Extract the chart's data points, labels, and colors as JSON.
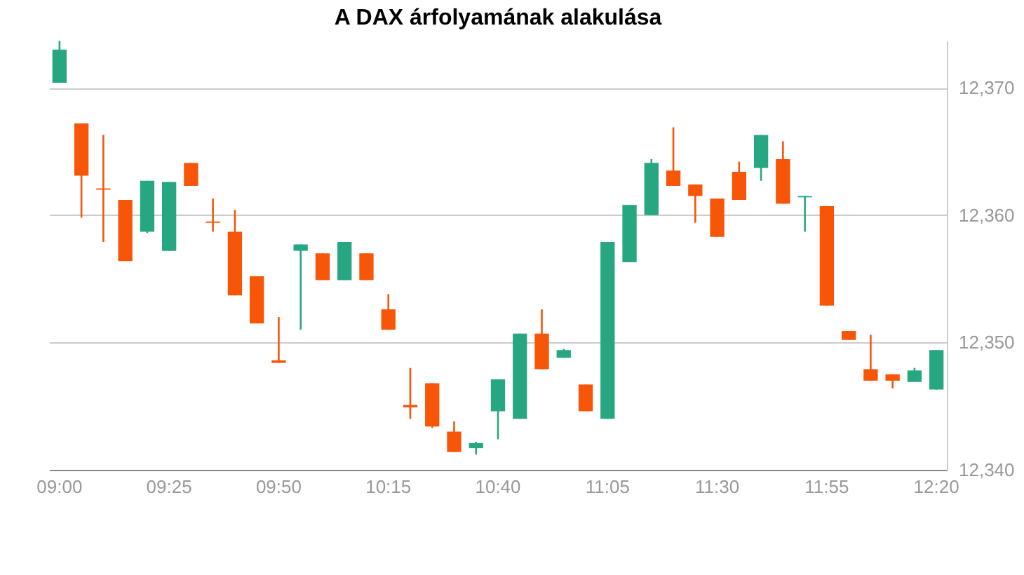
{
  "chart_data": {
    "type": "candlestick",
    "title": "A DAX árfolyamának alakulása",
    "categories": [
      "09:00",
      null,
      null,
      null,
      null,
      "09:25",
      null,
      null,
      null,
      null,
      "09:50",
      null,
      null,
      null,
      null,
      "10:15",
      null,
      null,
      null,
      null,
      "10:40",
      null,
      null,
      null,
      null,
      "11:05",
      null,
      null,
      null,
      null,
      "11:30",
      null,
      null,
      null,
      null,
      "11:55",
      null,
      null,
      null,
      null,
      "12:20"
    ],
    "ohlc": [
      [
        12370.4,
        12373.7,
        12370.4,
        12373.0
      ],
      [
        12367.2,
        12367.2,
        12359.8,
        12363.1
      ],
      [
        12362.1,
        12366.3,
        12357.9,
        12362.0
      ],
      [
        12361.2,
        12361.2,
        12356.4,
        12356.4
      ],
      [
        12358.7,
        12362.7,
        12358.6,
        12362.7
      ],
      [
        12357.2,
        12362.6,
        12357.2,
        12362.6
      ],
      [
        12364.1,
        12364.1,
        12362.3,
        12362.3
      ],
      [
        12359.5,
        12361.3,
        12358.7,
        12359.4
      ],
      [
        12358.7,
        12360.4,
        12353.7,
        12353.7
      ],
      [
        12355.2,
        12355.2,
        12351.5,
        12351.5
      ],
      [
        12348.6,
        12352.0,
        12348.4,
        12348.4
      ],
      [
        12357.2,
        12357.7,
        12351.0,
        12357.7
      ],
      [
        12357.0,
        12357.0,
        12354.9,
        12354.9
      ],
      [
        12354.9,
        12357.9,
        12354.9,
        12357.9
      ],
      [
        12357.0,
        12357.0,
        12354.9,
        12354.9
      ],
      [
        12352.6,
        12353.8,
        12351.0,
        12351.0
      ],
      [
        12345.1,
        12348.0,
        12344.0,
        12344.9
      ],
      [
        12346.8,
        12346.8,
        12343.3,
        12343.4
      ],
      [
        12343.0,
        12343.8,
        12341.4,
        12341.4
      ],
      [
        12341.7,
        12342.2,
        12341.2,
        12342.1
      ],
      [
        12344.6,
        12347.1,
        12342.4,
        12347.1
      ],
      [
        12344.0,
        12350.7,
        12344.0,
        12350.7
      ],
      [
        12350.7,
        12352.6,
        12347.9,
        12347.9
      ],
      [
        12348.8,
        12349.5,
        12348.8,
        12349.4
      ],
      [
        12346.7,
        12346.7,
        12344.6,
        12344.6
      ],
      [
        12344.0,
        12357.9,
        12344.0,
        12357.9
      ],
      [
        12356.3,
        12360.8,
        12356.3,
        12360.8
      ],
      [
        12360.0,
        12364.4,
        12360.0,
        12364.1
      ],
      [
        12363.5,
        12366.9,
        12362.3,
        12362.3
      ],
      [
        12362.4,
        12362.4,
        12359.4,
        12361.5
      ],
      [
        12361.3,
        12361.3,
        12358.3,
        12358.3
      ],
      [
        12363.4,
        12364.2,
        12361.2,
        12361.2
      ],
      [
        12363.7,
        12366.3,
        12362.7,
        12366.3
      ],
      [
        12364.4,
        12365.8,
        12360.9,
        12360.9
      ],
      [
        12361.4,
        12361.5,
        12358.7,
        12361.5
      ],
      [
        12360.7,
        12360.7,
        12352.9,
        12352.9
      ],
      [
        12350.9,
        12350.9,
        12350.2,
        12350.2
      ],
      [
        12347.9,
        12350.6,
        12347.0,
        12347.0
      ],
      [
        12347.5,
        12347.5,
        12346.4,
        12347.0
      ],
      [
        12346.9,
        12348.0,
        12346.9,
        12347.8
      ],
      [
        12346.3,
        12349.4,
        12346.3,
        12349.4
      ]
    ],
    "colors": [
      "#26a782",
      "#f75508",
      "#f75508",
      "#f75508",
      "#26a782",
      "#26a782",
      "#f75508",
      "#f75508",
      "#f75508",
      "#f75508",
      "#f75508",
      "#26a782",
      "#f75508",
      "#26a782",
      "#f75508",
      "#f75508",
      "#f75508",
      "#f75508",
      "#f75508",
      "#26a782",
      "#26a782",
      "#26a782",
      "#f75508",
      "#26a782",
      "#f75508",
      "#26a782",
      "#26a782",
      "#26a782",
      "#f75508",
      "#f75508",
      "#f75508",
      "#f75508",
      "#26a782",
      "#f75508",
      "#26a782",
      "#f75508",
      "#f75508",
      "#f75508",
      "#f75508",
      "#26a782",
      "#26a782"
    ],
    "ylim": [
      12340,
      12373.7
    ],
    "yticks": [
      {
        "value": 12340,
        "label": "12,340"
      },
      {
        "value": 12350,
        "label": "12,350"
      },
      {
        "value": 12360,
        "label": "12,360"
      },
      {
        "value": 12370,
        "label": "12,370"
      }
    ],
    "grid": "y"
  }
}
